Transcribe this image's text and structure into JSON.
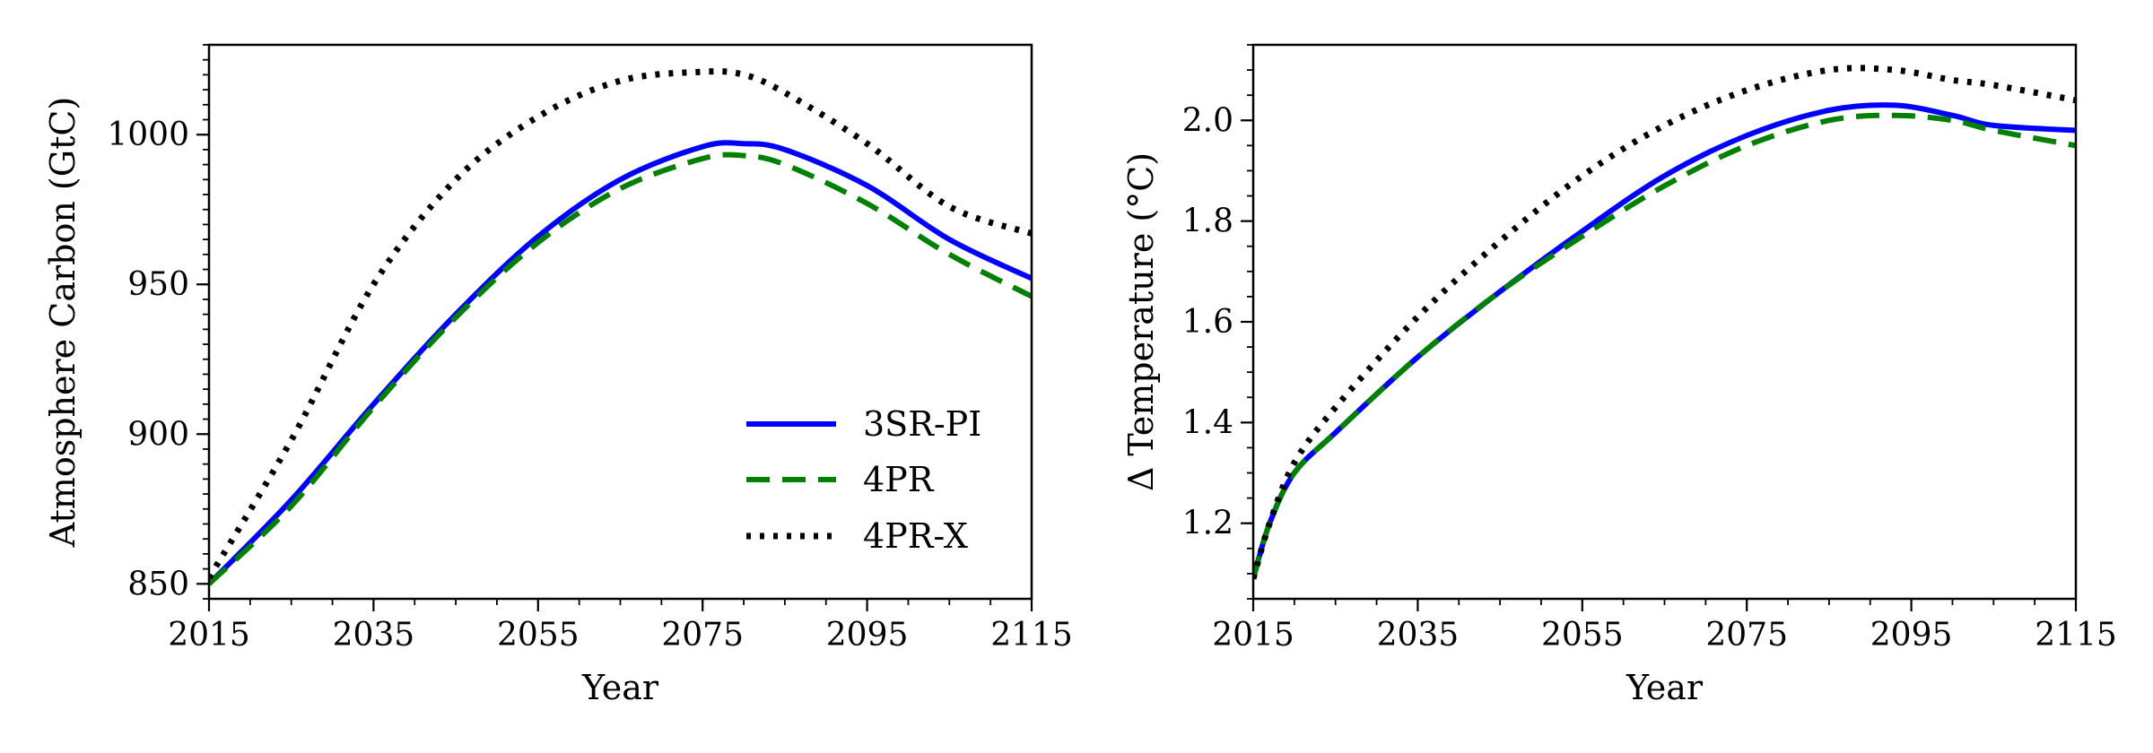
{
  "chart_data": [
    {
      "type": "line",
      "xlabel": "Year",
      "ylabel": "Atmosphere Carbon (GtC)",
      "xlim": [
        2015,
        2115
      ],
      "ylim": [
        845,
        1030
      ],
      "xticks": [
        2015,
        2035,
        2055,
        2075,
        2095,
        2115
      ],
      "xtick_labels": [
        "2015",
        "2035",
        "2055",
        "2075",
        "2095",
        "2115"
      ],
      "yticks": [
        850,
        900,
        950,
        1000
      ],
      "ytick_labels": [
        "850",
        "900",
        "950",
        "1000"
      ],
      "legend": {
        "position": "lower right",
        "entries": [
          "3SR-PI",
          "4PR",
          "4PR-X"
        ]
      },
      "x": [
        2015,
        2025,
        2035,
        2045,
        2055,
        2065,
        2075,
        2080,
        2085,
        2095,
        2105,
        2115
      ],
      "series": [
        {
          "name": "3SR-PI",
          "color": "#0000ff",
          "style": "solid",
          "values": [
            850,
            878,
            910,
            940,
            966,
            985,
            996,
            997,
            995,
            983,
            965,
            952
          ]
        },
        {
          "name": "4PR",
          "color": "#008000",
          "style": "dashed",
          "values": [
            850,
            876,
            909,
            939,
            964,
            982,
            992,
            993,
            990,
            977,
            960,
            946
          ]
        },
        {
          "name": "4PR-X",
          "color": "#000000",
          "style": "dotted",
          "values": [
            852,
            898,
            950,
            985,
            1006,
            1018,
            1021,
            1020,
            1014,
            997,
            976,
            967
          ]
        }
      ]
    },
    {
      "type": "line",
      "xlabel": "Year",
      "ylabel": "Δ Temperature (°C)",
      "xlim": [
        2015,
        2115
      ],
      "ylim": [
        1.05,
        2.15
      ],
      "xticks": [
        2015,
        2035,
        2055,
        2075,
        2095,
        2115
      ],
      "xtick_labels": [
        "2015",
        "2035",
        "2055",
        "2075",
        "2095",
        "2115"
      ],
      "yticks": [
        1.2,
        1.4,
        1.6,
        1.8,
        2.0
      ],
      "ytick_labels": [
        "1.2",
        "1.4",
        "1.6",
        "1.8",
        "2.0"
      ],
      "x": [
        2015,
        2017,
        2020,
        2025,
        2035,
        2045,
        2055,
        2065,
        2075,
        2085,
        2093,
        2100,
        2105,
        2115
      ],
      "series": [
        {
          "name": "3SR-PI",
          "color": "#0000ff",
          "style": "solid",
          "values": [
            1.09,
            1.2,
            1.3,
            1.38,
            1.53,
            1.66,
            1.78,
            1.89,
            1.97,
            2.02,
            2.03,
            2.01,
            1.99,
            1.98
          ]
        },
        {
          "name": "4PR",
          "color": "#008000",
          "style": "dashed",
          "values": [
            1.09,
            1.2,
            1.3,
            1.38,
            1.53,
            1.66,
            1.77,
            1.87,
            1.95,
            2.0,
            2.01,
            2.0,
            1.98,
            1.95
          ]
        },
        {
          "name": "4PR-X",
          "color": "#000000",
          "style": "dotted",
          "values": [
            1.09,
            1.2,
            1.32,
            1.43,
            1.61,
            1.76,
            1.89,
            1.99,
            2.06,
            2.1,
            2.1,
            2.08,
            2.07,
            2.04
          ]
        }
      ]
    }
  ]
}
